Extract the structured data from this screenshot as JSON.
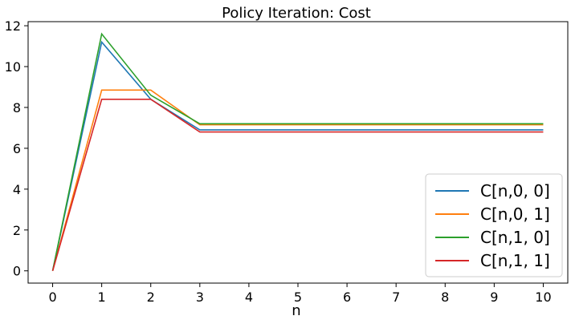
{
  "chart_data": {
    "type": "line",
    "title": "Policy Iteration: Cost",
    "xlabel": "n",
    "ylabel": "",
    "x": [
      0,
      1,
      2,
      3,
      4,
      5,
      6,
      7,
      8,
      9,
      10
    ],
    "xticks": [
      "0",
      "1",
      "2",
      "3",
      "4",
      "5",
      "6",
      "7",
      "8",
      "9",
      "10"
    ],
    "yticks": [
      "0",
      "2",
      "4",
      "6",
      "8",
      "10",
      "12"
    ],
    "xlim": [
      -0.5,
      10.5
    ],
    "ylim": [
      -0.6,
      12.2
    ],
    "grid": false,
    "legend_position": "lower-right",
    "series": [
      {
        "name": "C[n,0, 0]",
        "color": "#1f77b4",
        "values": [
          0,
          11.2,
          8.4,
          6.9,
          6.9,
          6.9,
          6.9,
          6.9,
          6.9,
          6.9,
          6.9
        ]
      },
      {
        "name": "C[n,0, 1]",
        "color": "#ff7f0e",
        "values": [
          0,
          8.85,
          8.85,
          7.15,
          7.15,
          7.15,
          7.15,
          7.15,
          7.15,
          7.15,
          7.15
        ]
      },
      {
        "name": "C[n,1, 0]",
        "color": "#2ca02c",
        "values": [
          0,
          11.6,
          8.6,
          7.2,
          7.2,
          7.2,
          7.2,
          7.2,
          7.2,
          7.2,
          7.2
        ]
      },
      {
        "name": "C[n,1, 1]",
        "color": "#d62728",
        "values": [
          0,
          8.4,
          8.4,
          6.8,
          6.8,
          6.8,
          6.8,
          6.8,
          6.8,
          6.8,
          6.8
        ]
      }
    ]
  }
}
